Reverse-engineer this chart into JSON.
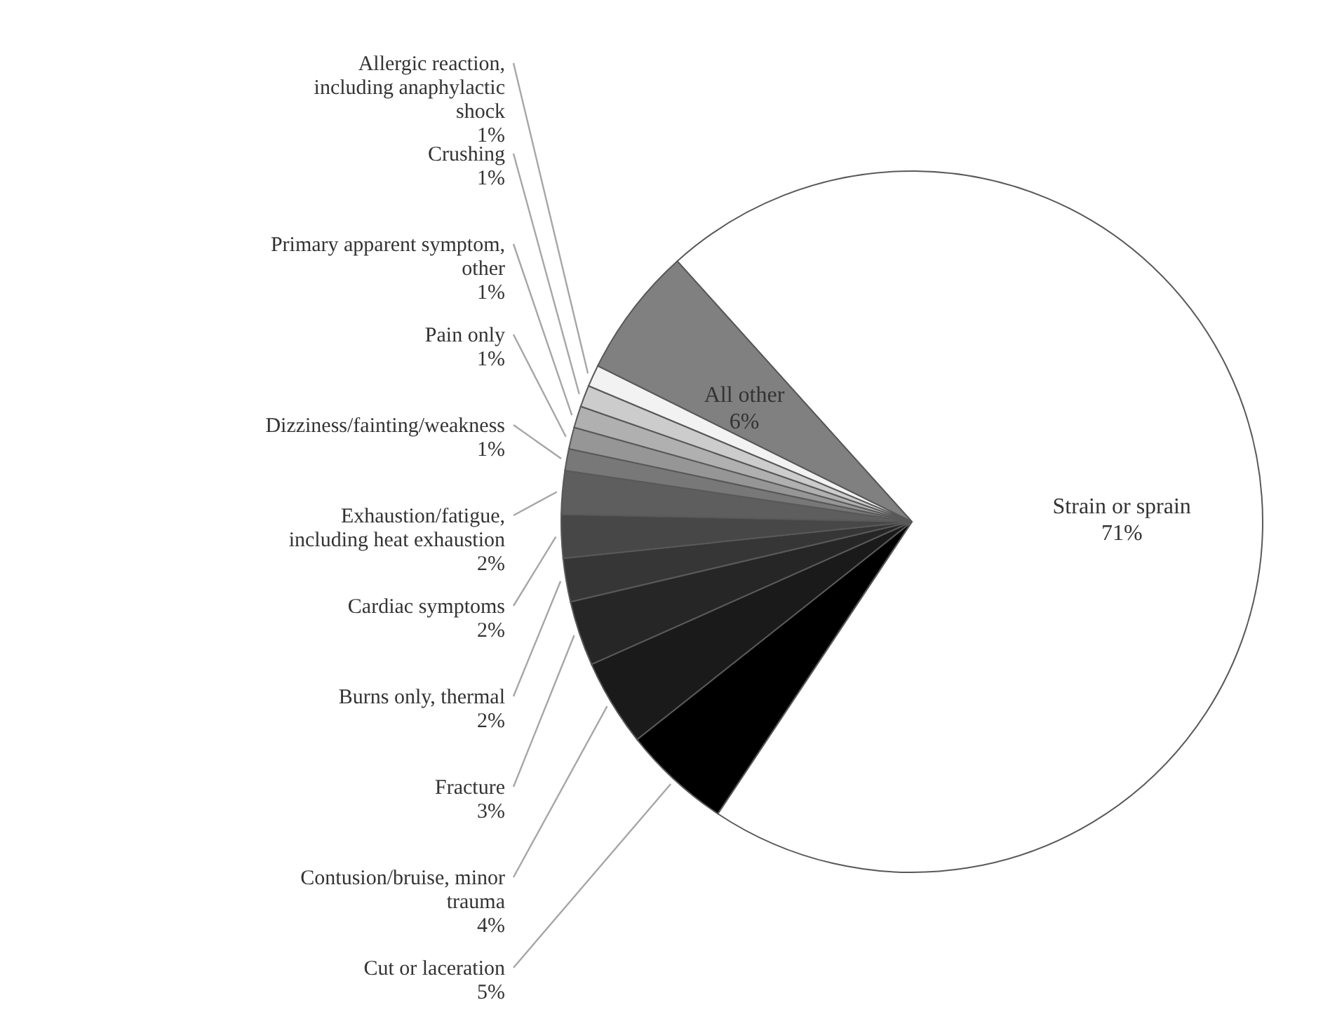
{
  "chart_data": {
    "type": "pie",
    "categories": [
      "Strain or sprain",
      "Cut or laceration",
      "Contusion/bruise, minor trauma",
      "Fracture",
      "Burns only, thermal",
      "Cardiac symptoms",
      "Exhaustion/fatigue, including heat exhaustion",
      "Dizziness/fainting/weakness",
      "Pain only",
      "Primary apparent symptom, other",
      "Crushing",
      "Allergic reaction, including anaphylactic shock",
      "All other"
    ],
    "values": [
      71,
      5,
      4,
      3,
      2,
      2,
      2,
      1,
      1,
      1,
      1,
      1,
      6
    ],
    "value_labels": [
      "71%",
      "5%",
      "4%",
      "3%",
      "2%",
      "2%",
      "2%",
      "1%",
      "1%",
      "1%",
      "1%",
      "1%",
      "6%"
    ],
    "colors": [
      "#ffffff",
      "#000000",
      "#1a1a1a",
      "#262626",
      "#363636",
      "#474747",
      "#5e5e5e",
      "#787878",
      "#969696",
      "#b0b0b0",
      "#cccccc",
      "#f2f2f2",
      "#808080"
    ]
  }
}
